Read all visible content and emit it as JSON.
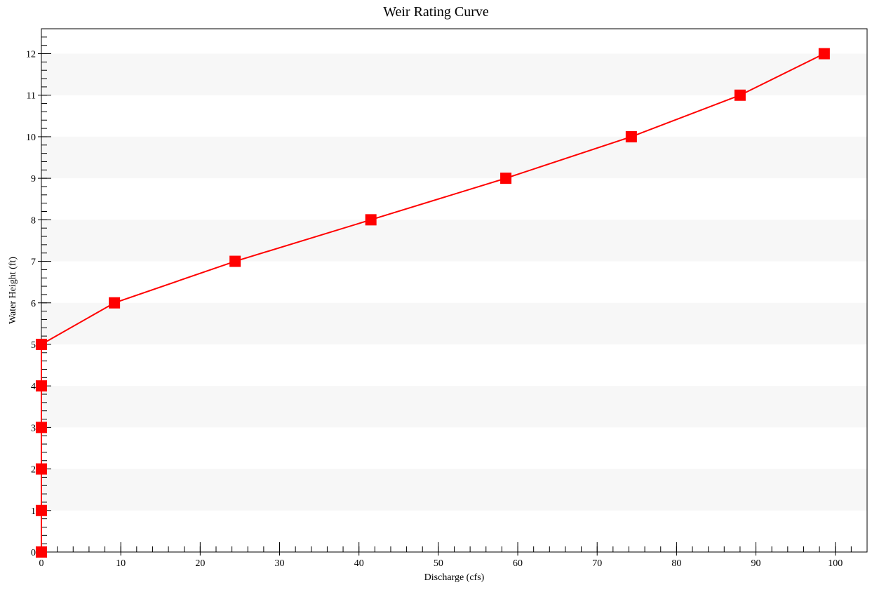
{
  "chart_data": {
    "type": "line",
    "title": "Weir Rating Curve",
    "xlabel": "Discharge (cfs)",
    "ylabel": "Water Height (ft)",
    "xlim": [
      0,
      104
    ],
    "ylim": [
      0,
      12.6
    ],
    "x_ticks": [
      0,
      10,
      20,
      30,
      40,
      50,
      60,
      70,
      80,
      90,
      100
    ],
    "y_ticks": [
      0,
      1,
      2,
      3,
      4,
      5,
      6,
      7,
      8,
      9,
      10,
      11,
      12
    ],
    "grid": "alternating horizontal bands",
    "series": [
      {
        "color": "#ff0000",
        "marker": "square",
        "points": [
          {
            "x": 0,
            "y": 0
          },
          {
            "x": 0,
            "y": 1
          },
          {
            "x": 0,
            "y": 2
          },
          {
            "x": 0,
            "y": 3
          },
          {
            "x": 0,
            "y": 4
          },
          {
            "x": 0,
            "y": 5
          },
          {
            "x": 9.2,
            "y": 6
          },
          {
            "x": 24.4,
            "y": 7
          },
          {
            "x": 41.5,
            "y": 8
          },
          {
            "x": 58.5,
            "y": 9
          },
          {
            "x": 74.3,
            "y": 10
          },
          {
            "x": 88.0,
            "y": 11
          },
          {
            "x": 98.6,
            "y": 12
          }
        ]
      }
    ]
  }
}
